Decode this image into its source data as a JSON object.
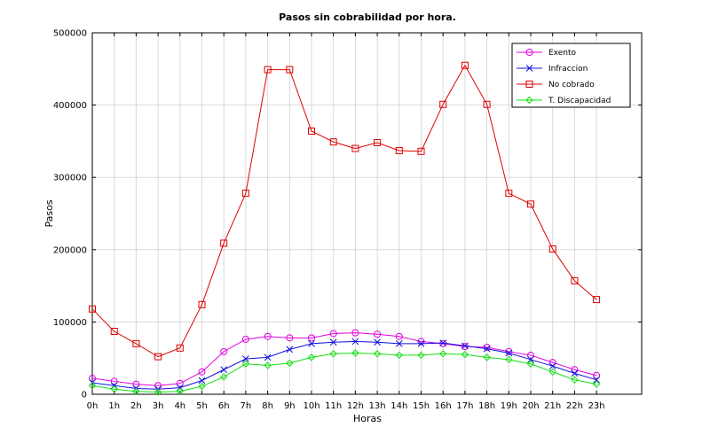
{
  "chart_data": {
    "type": "line",
    "title": "Pasos sin cobrabilidad por hora.",
    "xlabel": "Horas",
    "ylabel": "Pasos",
    "categories": [
      "0h",
      "1h",
      "2h",
      "3h",
      "4h",
      "5h",
      "6h",
      "7h",
      "8h",
      "9h",
      "10h",
      "11h",
      "12h",
      "13h",
      "14h",
      "15h",
      "16h",
      "17h",
      "18h",
      "19h",
      "20h",
      "21h",
      "22h",
      "23h"
    ],
    "ylim": [
      0,
      500000
    ],
    "yticks": [
      0,
      100000,
      200000,
      300000,
      400000,
      500000
    ],
    "ytick_labels": [
      "0",
      "100000",
      "200000",
      "300000",
      "400000",
      "500000"
    ],
    "grid": true,
    "legend_position": "top-right",
    "series": [
      {
        "name": "Exento",
        "color": "#e000e0",
        "marker": "circle",
        "values": [
          22000,
          18000,
          14000,
          12000,
          15000,
          31000,
          59000,
          76000,
          80000,
          78000,
          78000,
          84000,
          85000,
          83000,
          80000,
          73000,
          70000,
          66000,
          65000,
          59000,
          54000,
          44000,
          34000,
          26000
        ]
      },
      {
        "name": "Infraccion",
        "color": "#1010e0",
        "marker": "x",
        "values": [
          16000,
          12000,
          8000,
          7000,
          9000,
          19000,
          34000,
          49000,
          51000,
          62000,
          70000,
          72000,
          73000,
          72000,
          70000,
          70000,
          71000,
          67000,
          63000,
          57000,
          48000,
          39000,
          29000,
          20000
        ]
      },
      {
        "name": "No cobrado",
        "color": "#e00000",
        "marker": "square",
        "values": [
          118000,
          87000,
          70000,
          52000,
          64000,
          124000,
          209000,
          278000,
          449000,
          449000,
          364000,
          349000,
          340000,
          348000,
          337000,
          336000,
          401000,
          455000,
          401000,
          278000,
          263000,
          201000,
          157000,
          131000
        ]
      },
      {
        "name": "T. Discapacidad",
        "color": "#10e010",
        "marker": "diamond",
        "values": [
          12000,
          7000,
          4000,
          3000,
          4000,
          11000,
          24000,
          42000,
          40000,
          43000,
          51000,
          56000,
          57000,
          56000,
          54000,
          54000,
          56000,
          55000,
          51000,
          48000,
          42000,
          31000,
          20000,
          14000
        ]
      }
    ]
  }
}
